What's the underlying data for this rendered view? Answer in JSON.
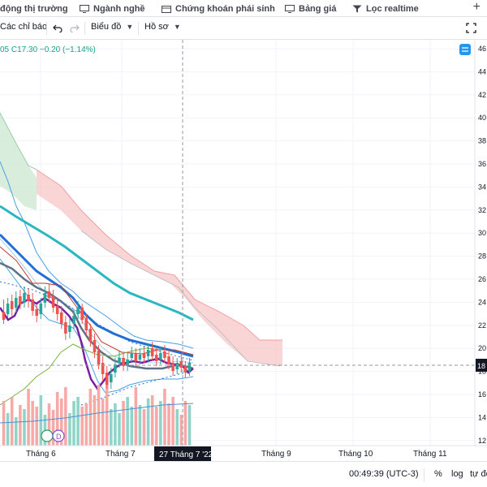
{
  "topnav": {
    "items": [
      {
        "label": "động thị trường",
        "icon": "none"
      },
      {
        "label": "Ngành nghề",
        "icon": "monitor-icon"
      },
      {
        "label": "Chứng khoán phái sinh",
        "icon": "calendar-icon"
      },
      {
        "label": "Bảng giá",
        "icon": "monitor-icon"
      },
      {
        "label": "Lọc realtime",
        "icon": "filter-icon"
      }
    ],
    "plus": "+"
  },
  "toolbar": {
    "indicators": "Các chỉ báo",
    "chart_type": "Biểu đồ",
    "profile": "Hồ sơ"
  },
  "legend": {
    "text": "05  C17.30  −0.20 (−1.14%)"
  },
  "chart_data": {
    "type": "candlestick",
    "price_axis": [
      "46",
      "44",
      "42",
      "40",
      "38",
      "36",
      "34",
      "32",
      "30",
      "28",
      "26",
      "24",
      "22",
      "20",
      "18",
      "16",
      "14",
      "12"
    ],
    "current_price_label": "18",
    "time_axis": [
      "Tháng 6",
      "Tháng 7",
      "Tháng 9",
      "Tháng 10",
      "Tháng 11"
    ],
    "crosshair_date_label": "27 Tháng 7 '22",
    "close": 17.3,
    "change": -0.2,
    "change_pct": -1.14,
    "colors": {
      "up": "#26a69a",
      "down": "#ef5350",
      "ma_teal": "#2ab7c0",
      "ma_blue": "#1f6fd6",
      "ma_gray": "#5f7184",
      "ma_purple": "#7b1fa2",
      "cloud_red": "#f7c7c7",
      "cloud_green": "#cfe9d4"
    }
  },
  "bottombar": {
    "time": "00:49:39 (UTC-3)",
    "percent": "%",
    "log": "log",
    "auto": "tự độ"
  }
}
